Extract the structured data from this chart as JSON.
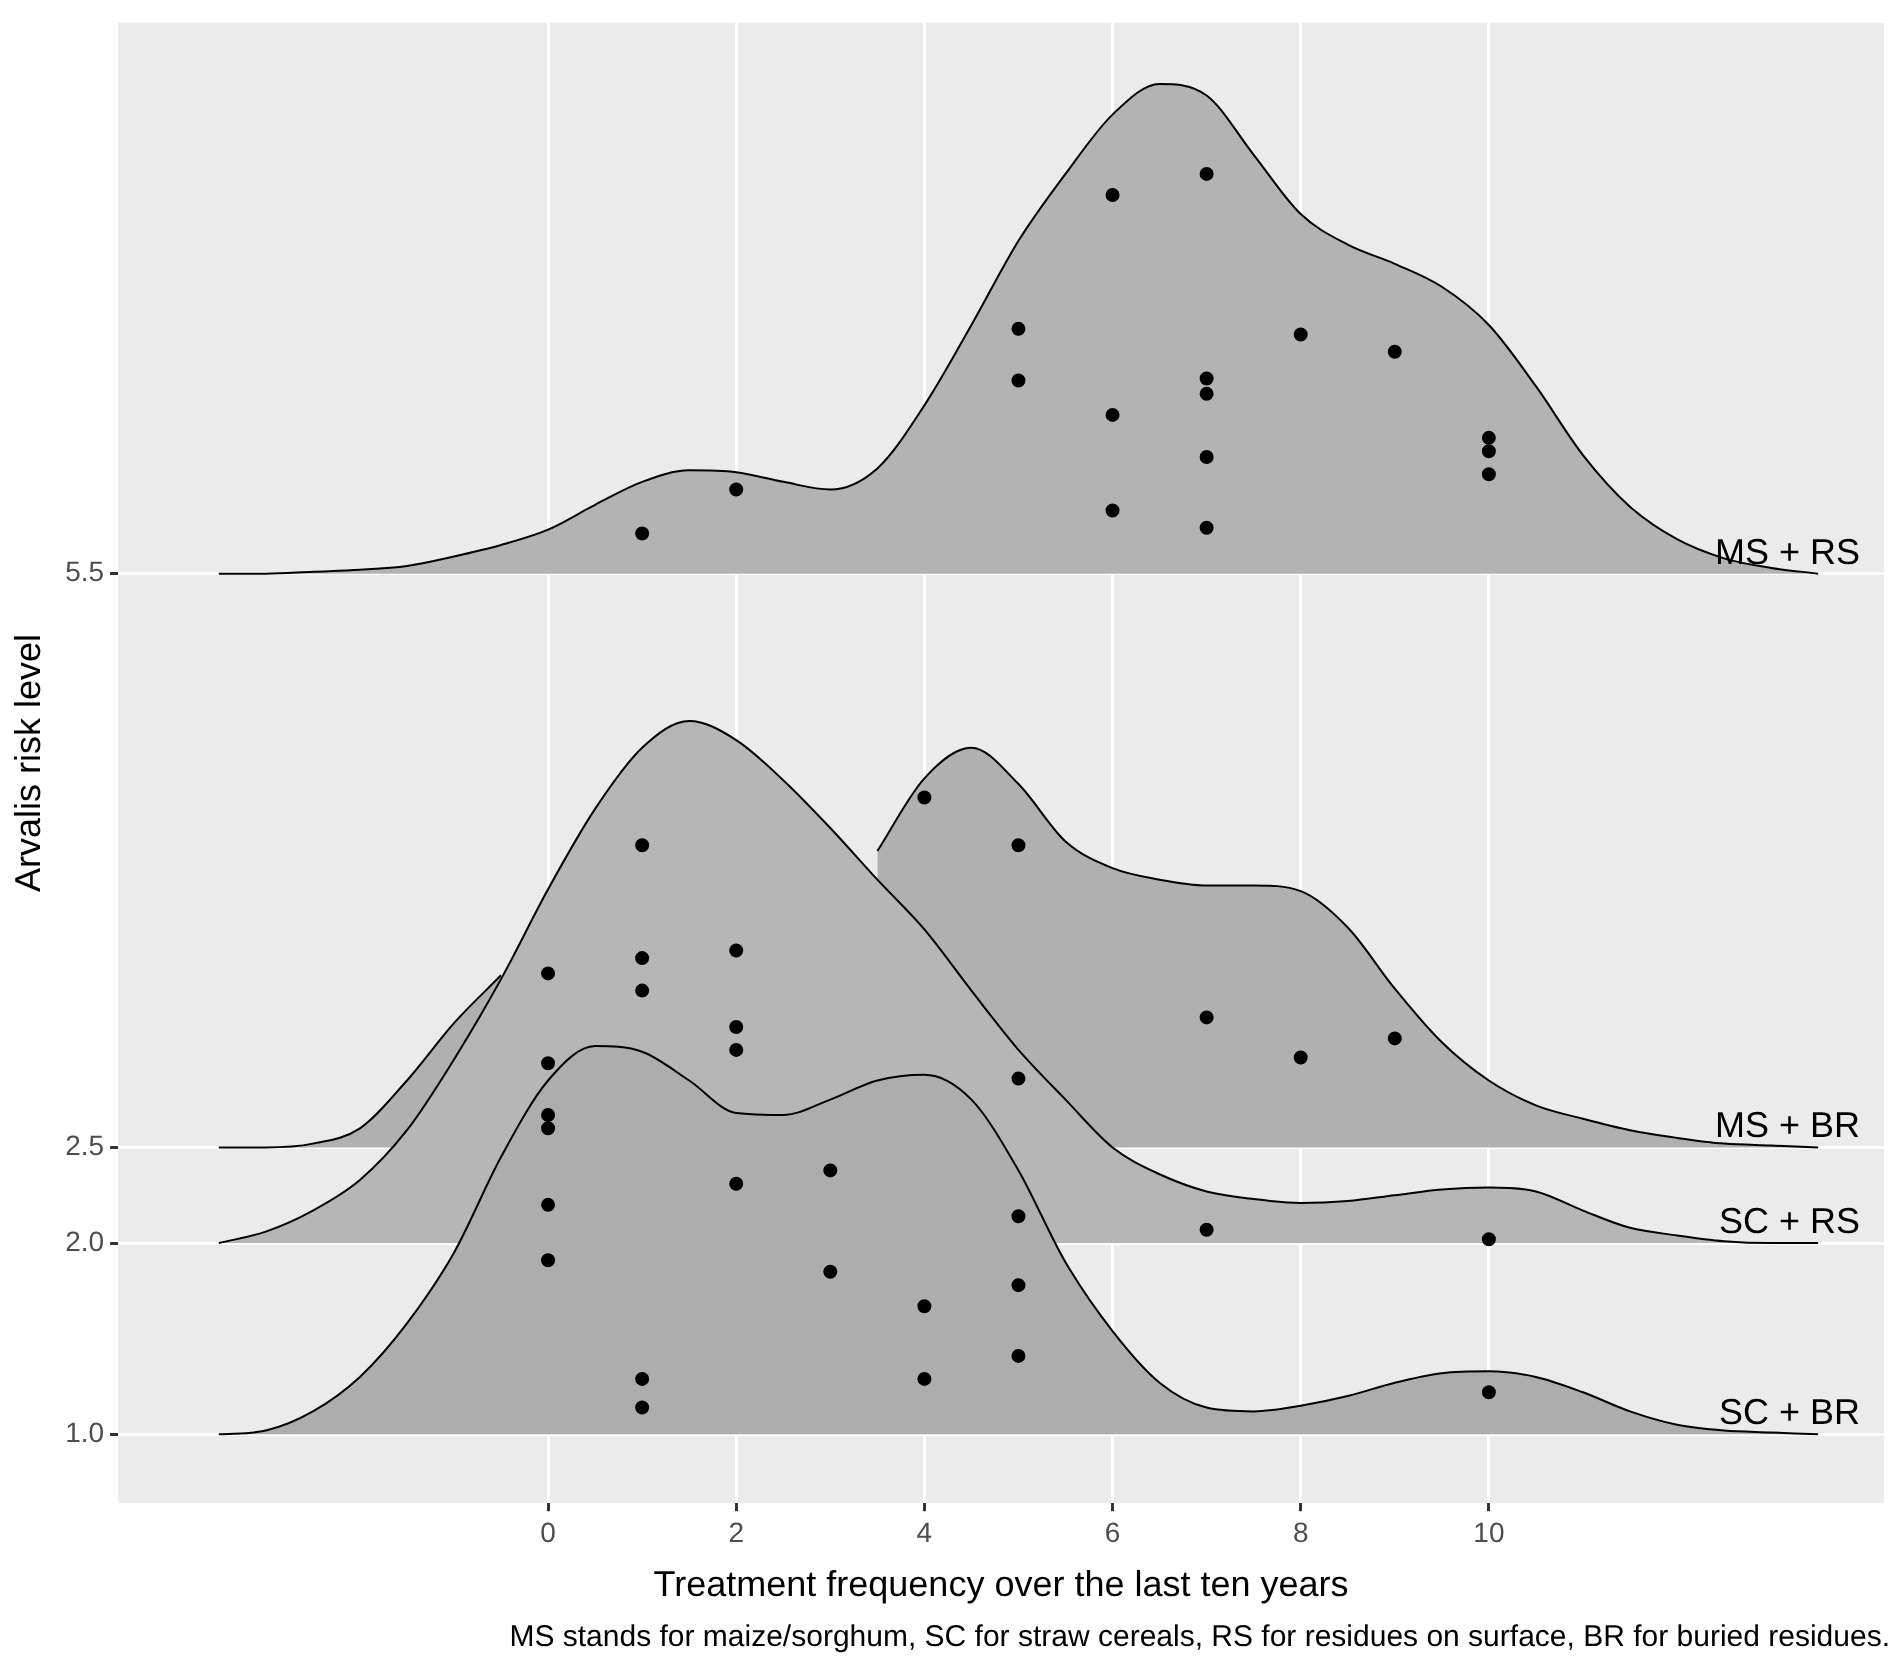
{
  "chart_data": {
    "type": "area",
    "xlabel": "Treatment frequency over the last ten years",
    "ylabel": "Arvalis risk level",
    "annotations": [
      "MS stands for maize/sorghum, SC for straw cereals, RS for residues on surface, BR for buried residues."
    ],
    "x": [
      -3.5,
      -3,
      -2.5,
      -2,
      -1.5,
      -1,
      -0.5,
      0,
      0.5,
      1,
      1.5,
      2,
      2.5,
      3,
      3.5,
      4,
      4.5,
      5,
      5.5,
      6,
      6.5,
      7,
      7.5,
      8,
      8.5,
      9,
      9.5,
      10,
      10.5,
      11,
      11.5,
      12,
      12.5,
      13,
      13.5
    ],
    "series": [
      {
        "name": "MS + RS",
        "color": "#b3b3b3",
        "values": [
          5.5,
          5.5,
          5.51,
          5.52,
          5.54,
          5.59,
          5.65,
          5.73,
          5.86,
          5.98,
          6.04,
          6.03,
          5.98,
          5.94,
          6.05,
          6.38,
          6.8,
          7.24,
          7.59,
          7.9,
          8.06,
          8.0,
          7.69,
          7.38,
          7.22,
          7.12,
          7.0,
          6.8,
          6.48,
          6.12,
          5.85,
          5.68,
          5.58,
          5.53,
          5.5
        ]
      },
      {
        "name": "MS + BR",
        "color": "#b0b0b0",
        "values": [
          2.5,
          2.5,
          2.52,
          2.6,
          2.85,
          3.15,
          3.4,
          null,
          null,
          null,
          null,
          null,
          null,
          null,
          4.05,
          4.43,
          4.59,
          4.4,
          4.1,
          3.96,
          3.9,
          3.87,
          3.87,
          3.84,
          3.65,
          3.33,
          3.05,
          2.85,
          2.72,
          2.65,
          2.59,
          2.55,
          2.52,
          2.51,
          2.5
        ]
      },
      {
        "name": "SC + RS",
        "color": "#b6b6b6",
        "values": [
          2.0,
          2.06,
          2.17,
          2.33,
          2.59,
          2.96,
          3.38,
          3.85,
          4.27,
          4.59,
          4.73,
          4.63,
          4.42,
          4.17,
          3.9,
          3.64,
          3.32,
          3.01,
          2.75,
          2.5,
          2.36,
          2.27,
          2.23,
          2.21,
          2.22,
          2.25,
          2.28,
          2.29,
          2.27,
          2.17,
          2.08,
          2.04,
          2.01,
          2.0,
          2.0
        ]
      },
      {
        "name": "SC + BR",
        "color": "#adadad",
        "values": [
          1.0,
          1.02,
          1.12,
          1.3,
          1.58,
          1.95,
          2.45,
          2.85,
          3.03,
          3.0,
          2.85,
          2.68,
          2.67,
          2.75,
          2.85,
          2.88,
          2.75,
          2.38,
          1.9,
          1.54,
          1.27,
          1.14,
          1.12,
          1.15,
          1.2,
          1.27,
          1.32,
          1.33,
          1.3,
          1.22,
          1.12,
          1.05,
          1.02,
          1.01,
          1.0
        ]
      },
      {
        "type": "scatter",
        "color": "#000000",
        "marker": "circle",
        "x": [
          1,
          2,
          5,
          5,
          6,
          6,
          6,
          7,
          7,
          7,
          7,
          7,
          8,
          9,
          10,
          10,
          10,
          4,
          5,
          7,
          8,
          9,
          5,
          0,
          0,
          1,
          1,
          1,
          2,
          2,
          2,
          0,
          0,
          0,
          0,
          1,
          1,
          2,
          3,
          3,
          4,
          4,
          5,
          5,
          5,
          7,
          10,
          10
        ],
        "values": [
          5.71,
          5.94,
          6.78,
          6.51,
          7.48,
          6.33,
          5.83,
          7.59,
          6.52,
          6.44,
          6.11,
          5.74,
          6.75,
          6.66,
          6.21,
          6.14,
          6.02,
          4.33,
          4.08,
          3.18,
          2.97,
          3.07,
          2.86,
          3.41,
          2.94,
          4.08,
          3.49,
          3.32,
          3.53,
          3.13,
          3.01,
          2.67,
          2.6,
          2.2,
          1.91,
          1.29,
          1.14,
          2.31,
          2.38,
          1.85,
          1.67,
          1.29,
          2.14,
          1.78,
          1.41,
          2.07,
          2.02,
          1.22
        ]
      }
    ],
    "xlim": [
      -4.57,
      14.2
    ],
    "xticks": [
      0,
      2,
      4,
      6,
      8,
      10
    ],
    "ylim": [
      0.64,
      8.38
    ],
    "yticks": [
      {
        "value": 1,
        "label": "1.0"
      },
      {
        "value": 2,
        "label": "2.0"
      },
      2.5,
      5.5
    ],
    "grid": true,
    "legend": false
  }
}
